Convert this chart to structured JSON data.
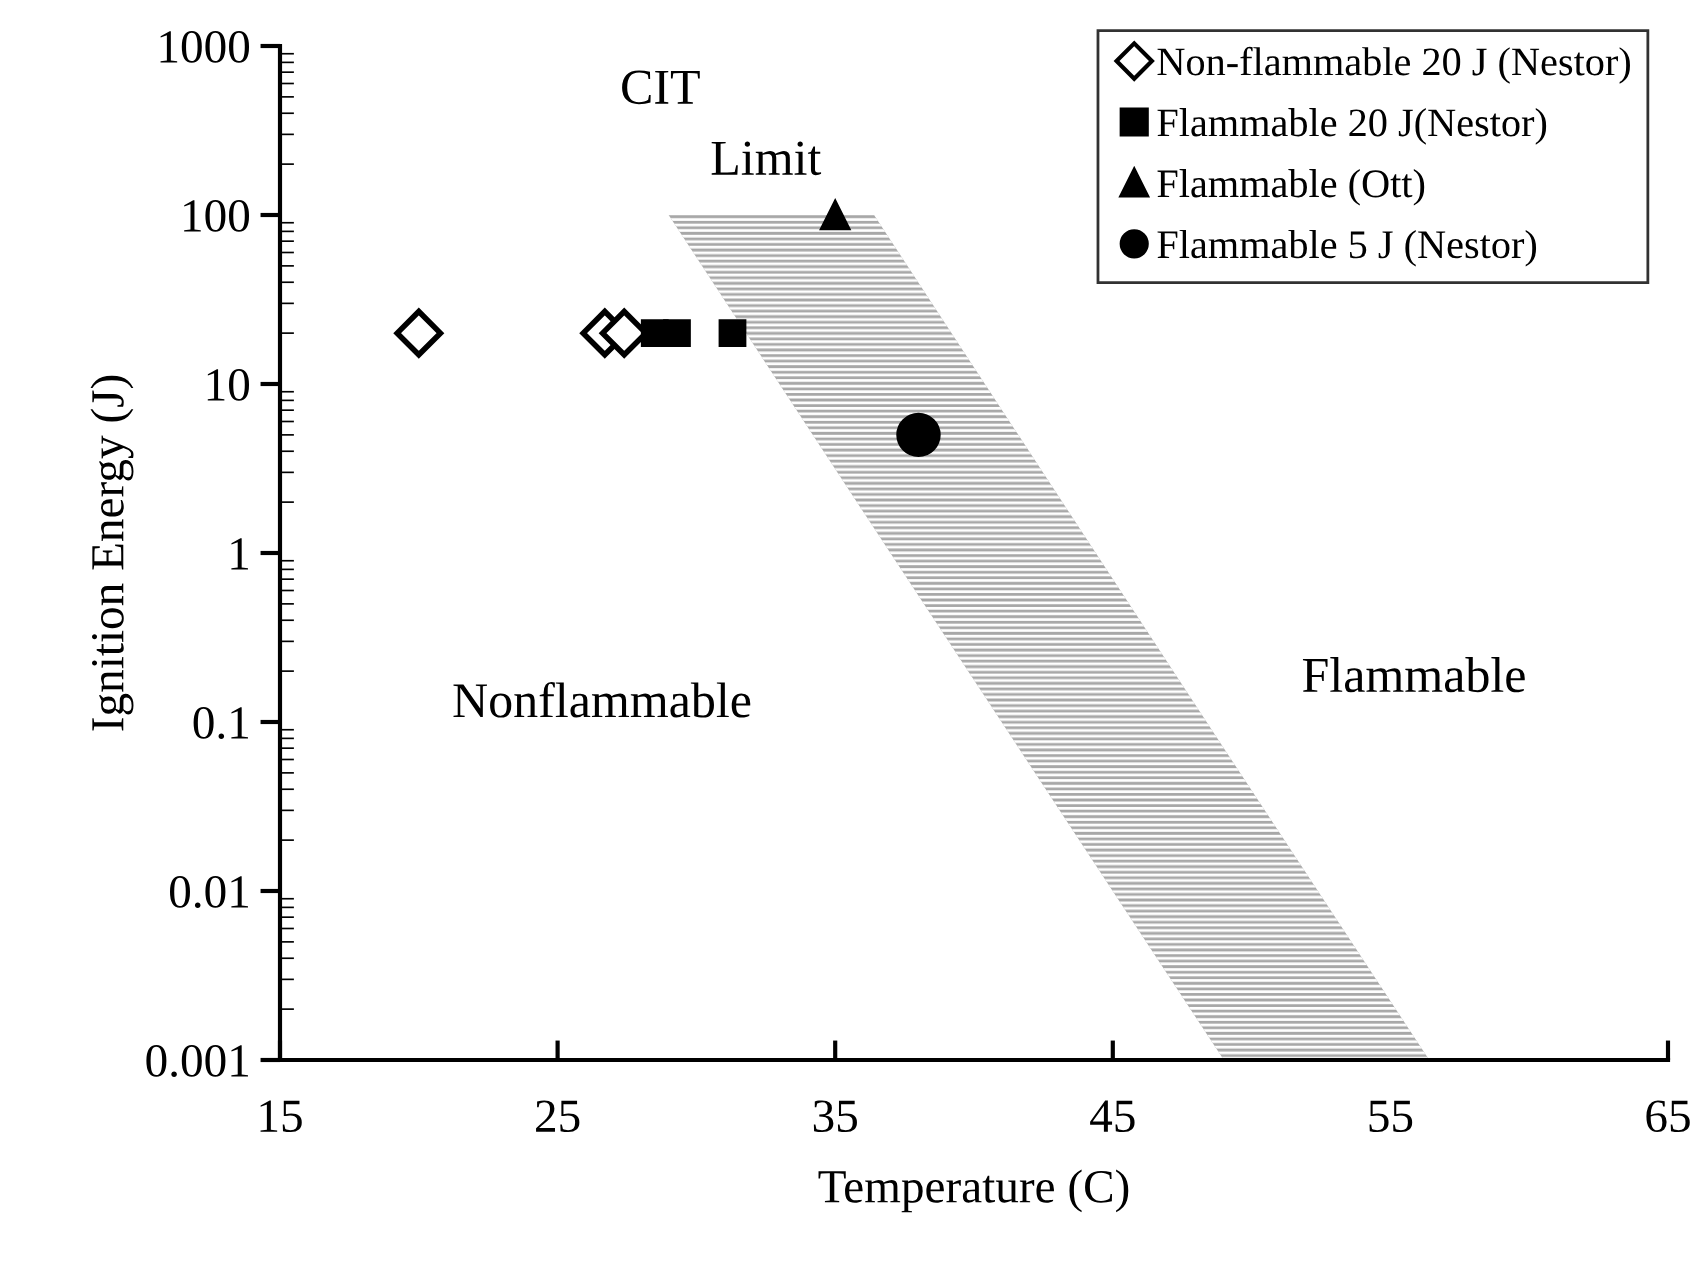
{
  "chart_data": {
    "type": "scatter",
    "xlabel": "Temperature (C)",
    "ylabel": "Ignition Energy (J)",
    "annotations": [
      "CIT",
      "Limit",
      "Nonflammable",
      "Flammable"
    ],
    "series": [
      {
        "type": "line",
        "color": "#a8a8a8",
        "x": [
          29,
          36.4,
          49,
          56.4
        ],
        "values": [
          null,
          null,
          null,
          null
        ],
        "upper": [
          100,
          100,
          0.07,
          0.001
        ],
        "lower": [
          100,
          1.4,
          0.001,
          0.001
        ]
      },
      {
        "name": "Non-flammable 20 J (Nestor)",
        "color": "#000000",
        "marker": "diamond",
        "x": [
          20,
          26.7,
          27.4
        ],
        "values": [
          20,
          20,
          20
        ]
      },
      {
        "name": "Flammable 20 J(Nestor)",
        "color": "#000000",
        "marker": "square",
        "x": [
          28.5,
          29.3,
          31.3
        ],
        "values": [
          20,
          20,
          20
        ]
      },
      {
        "name": "Flammable (Ott)",
        "color": "#000000",
        "marker": "triangle",
        "x": [
          35
        ],
        "values": [
          100
        ]
      },
      {
        "name": "Flammable 5 J (Nestor)",
        "color": "#000000",
        "marker": "circle",
        "x": [
          38
        ],
        "values": [
          5
        ]
      }
    ],
    "log": "y",
    "xlim": [
      15,
      65
    ],
    "xticks": [
      15,
      25,
      35,
      45,
      55,
      65
    ],
    "ylim": [
      0.001,
      1000
    ],
    "yticks": [
      0.001,
      0.01,
      0.1,
      1,
      10,
      100,
      1000
    ],
    "grid": false,
    "legend": "top right"
  }
}
